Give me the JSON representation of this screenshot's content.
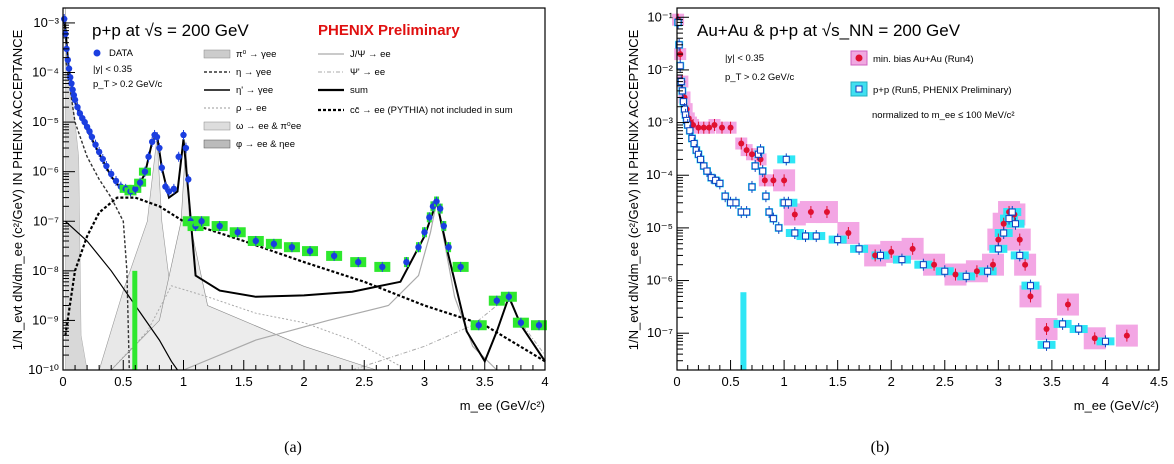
{
  "captions": [
    "(a)",
    "(b)"
  ],
  "chart_data": [
    {
      "type": "scatter",
      "title": "p+p at √s = 200 GeV",
      "prelim": "PHENIX Preliminary",
      "xlabel": "m_ee (GeV/c²)",
      "ylabel": "1/N_evt dN/dm_ee (c²/GeV) IN PHENIX ACCEPTANCE",
      "log_y": true,
      "xlim": [
        0,
        4
      ],
      "ylim": [
        1e-10,
        0.002
      ],
      "x_ticks": [
        "0",
        "0.5",
        "1",
        "1.5",
        "2",
        "2.5",
        "3",
        "3.5",
        "4"
      ],
      "y_ticks": [
        "10⁻¹⁰",
        "10⁻⁹",
        "10⁻⁸",
        "10⁻⁷",
        "10⁻⁶",
        "10⁻⁵",
        "10⁻⁴",
        "10⁻³"
      ],
      "cuts": [
        "|y| < 0.35",
        "p_T > 0.2 GeV/c"
      ],
      "legend": [
        "DATA",
        "π⁰ → γee",
        "η → γee",
        "η' → γee",
        "ρ → ee",
        "ω → ee & π⁰ee",
        "φ → ee & ηee",
        "J/Ψ → ee",
        "Ψ' → ee",
        "sum",
        "cc̄ → ee (PYTHIA) not included in sum"
      ],
      "series": [
        {
          "name": "DATA",
          "x": [
            0.01,
            0.02,
            0.03,
            0.04,
            0.05,
            0.06,
            0.07,
            0.08,
            0.09,
            0.1,
            0.12,
            0.14,
            0.16,
            0.18,
            0.2,
            0.22,
            0.24,
            0.27,
            0.3,
            0.33,
            0.36,
            0.4,
            0.44,
            0.48,
            0.52,
            0.56,
            0.6,
            0.64,
            0.68,
            0.71,
            0.74,
            0.76,
            0.78,
            0.8,
            0.82,
            0.85,
            0.88,
            0.92,
            0.96,
            1.0,
            1.02,
            1.04,
            1.06,
            1.1,
            1.15,
            1.3,
            1.45,
            1.6,
            1.75,
            1.9,
            2.05,
            2.25,
            2.45,
            2.65,
            2.85,
            2.95,
            3.0,
            3.04,
            3.07,
            3.1,
            3.13,
            3.16,
            3.2,
            3.3,
            3.45,
            3.6,
            3.7,
            3.8,
            3.95
          ],
          "y": [
            0.0012,
            0.0006,
            0.0003,
            0.00018,
            0.00012,
            8e-05,
            6e-05,
            4.5e-05,
            3.5e-05,
            2.8e-05,
            2e-05,
            1.5e-05,
            1.2e-05,
            1e-05,
            8e-06,
            6.5e-06,
            5e-06,
            3.5e-06,
            2.5e-06,
            1.8e-06,
            1.3e-06,
            9e-07,
            6.5e-07,
            5e-07,
            4.5e-07,
            4e-07,
            4.5e-07,
            6e-07,
            1e-06,
            2e-06,
            4e-06,
            5.5e-06,
            5e-06,
            3e-06,
            1.2e-06,
            5e-07,
            4e-07,
            4.5e-07,
            2e-06,
            5.5e-06,
            3e-06,
            7e-07,
            1e-07,
            8e-08,
            1e-07,
            8e-08,
            6e-08,
            4e-08,
            3.5e-08,
            3e-08,
            2.5e-08,
            2e-08,
            1.5e-08,
            1.2e-08,
            1.5e-08,
            3e-08,
            6e-08,
            1.2e-07,
            2e-07,
            2.5e-07,
            1.8e-07,
            8e-08,
            3e-08,
            1.2e-08,
            8e-10,
            2.5e-09,
            3e-09,
            9e-10,
            8e-10
          ]
        },
        {
          "name": "sum",
          "x": [
            0.01,
            0.05,
            0.1,
            0.2,
            0.3,
            0.4,
            0.5,
            0.6,
            0.68,
            0.74,
            0.78,
            0.82,
            0.88,
            0.95,
            1.0,
            1.04,
            1.1,
            1.3,
            1.6,
            2.0,
            2.4,
            2.8,
            3.0,
            3.1,
            3.2,
            3.35,
            3.5,
            3.6,
            3.7,
            3.8,
            4.0
          ],
          "y": [
            0.0013,
            0.00011,
            2.5e-05,
            7e-06,
            2.3e-06,
            8e-07,
            4e-07,
            4e-07,
            9e-07,
            4e-06,
            5.5e-06,
            1.2e-06,
            3e-07,
            4e-07,
            4.5e-06,
            4e-07,
            8e-09,
            4e-09,
            3e-09,
            3.2e-09,
            3.8e-09,
            6e-09,
            5e-08,
            2.5e-07,
            2e-08,
            6e-10,
            1.5e-10,
            6e-10,
            3e-09,
            8e-10,
            1.5e-10
          ]
        },
        {
          "name": "cc̄ → ee (PYTHIA) not included in sum",
          "x": [
            0.02,
            0.1,
            0.2,
            0.3,
            0.45,
            0.6,
            0.8,
            1.0,
            1.5,
            2.0,
            2.5,
            3.0,
            3.5,
            4.0
          ],
          "y": [
            5e-10,
            1e-08,
            5e-08,
            1.5e-07,
            3e-07,
            3e-07,
            2e-07,
            1e-07,
            4e-08,
            1.5e-08,
            6e-09,
            2e-09,
            8e-10,
            1.5e-10
          ]
        }
      ]
    },
    {
      "type": "scatter",
      "title": "Au+Au & p+p at √s_NN = 200 GeV",
      "xlabel": "m_ee (GeV/c²)",
      "ylabel": "1/N_evt dN/dm_ee (c²/GeV) IN PHENIX ACCEPTANCE",
      "log_y": true,
      "xlim": [
        0,
        4.5
      ],
      "ylim": [
        2e-08,
        0.15
      ],
      "x_ticks": [
        "0",
        "0.5",
        "1",
        "1.5",
        "2",
        "2.5",
        "3",
        "3.5",
        "4",
        "4.5"
      ],
      "y_ticks": [
        "10⁻⁷",
        "10⁻⁶",
        "10⁻⁵",
        "10⁻⁴",
        "10⁻³",
        "10⁻²",
        "10⁻¹"
      ],
      "cuts": [
        "|y| < 0.35",
        "p_T > 0.2 GeV/c"
      ],
      "note": "normalized to m_ee ≤ 100 MeV/c²",
      "legend": [
        "min. bias Au+Au (Run4)",
        "p+p (Run5, PHENIX Preliminary)"
      ],
      "series": [
        {
          "name": "min. bias Au+Au (Run4)",
          "color": "#e01030",
          "x": [
            0.01,
            0.03,
            0.05,
            0.07,
            0.09,
            0.11,
            0.13,
            0.15,
            0.2,
            0.25,
            0.3,
            0.35,
            0.42,
            0.5,
            0.6,
            0.65,
            0.7,
            0.75,
            0.78,
            0.82,
            0.9,
            1.0,
            1.1,
            1.25,
            1.4,
            1.6,
            1.85,
            2.0,
            2.2,
            2.4,
            2.6,
            2.8,
            2.95,
            3.0,
            3.05,
            3.1,
            3.15,
            3.2,
            3.25,
            3.3,
            3.45,
            3.65,
            3.9,
            4.2
          ],
          "y": [
            0.09,
            0.02,
            0.006,
            0.003,
            0.0018,
            0.0012,
            0.001,
            0.0009,
            0.0008,
            0.0008,
            0.0008,
            0.0009,
            0.0008,
            0.0008,
            0.0004,
            0.0003,
            0.00025,
            0.00025,
            0.0002,
            8e-05,
            8e-05,
            8e-05,
            1.8e-05,
            2e-05,
            2e-05,
            8e-06,
            3e-06,
            3.5e-06,
            4e-06,
            2e-06,
            1.3e-06,
            1.5e-06,
            2e-06,
            6e-06,
            1.2e-05,
            2e-05,
            1.8e-05,
            6e-06,
            2e-06,
            5e-07,
            1.2e-07,
            3.5e-07,
            8e-08,
            9e-08
          ]
        },
        {
          "name": "p+p (Run5, PHENIX Preliminary)",
          "color": "#1040c0",
          "x": [
            0.01,
            0.02,
            0.03,
            0.04,
            0.05,
            0.06,
            0.07,
            0.08,
            0.09,
            0.1,
            0.12,
            0.14,
            0.16,
            0.18,
            0.2,
            0.22,
            0.25,
            0.28,
            0.32,
            0.36,
            0.4,
            0.45,
            0.5,
            0.55,
            0.6,
            0.65,
            0.7,
            0.73,
            0.76,
            0.78,
            0.8,
            0.83,
            0.86,
            0.9,
            0.95,
            1.0,
            1.02,
            1.04,
            1.1,
            1.2,
            1.3,
            1.5,
            1.7,
            1.9,
            2.1,
            2.3,
            2.5,
            2.7,
            2.9,
            3.0,
            3.05,
            3.1,
            3.13,
            3.16,
            3.2,
            3.3,
            3.45,
            3.6,
            3.75,
            4.0
          ],
          "y": [
            0.08,
            0.03,
            0.012,
            0.006,
            0.004,
            0.0025,
            0.0018,
            0.0014,
            0.0011,
            0.0009,
            0.0007,
            0.0005,
            0.0004,
            0.0003,
            0.00025,
            0.0002,
            0.00015,
            0.00012,
            9e-05,
            8e-05,
            7e-05,
            4e-05,
            3e-05,
            3e-05,
            2e-05,
            2e-05,
            6e-05,
            0.00015,
            0.00025,
            0.0003,
            0.00012,
            4e-05,
            2e-05,
            1.5e-05,
            1e-05,
            3e-05,
            0.0002,
            3e-05,
            8e-06,
            7e-06,
            7e-06,
            6e-06,
            4e-06,
            3e-06,
            2.5e-06,
            2e-06,
            1.5e-06,
            1.2e-06,
            1.5e-06,
            4e-06,
            8e-06,
            1.5e-05,
            2e-05,
            1.2e-05,
            3e-06,
            8e-07,
            6e-08,
            1.5e-07,
            1.2e-07,
            7e-08
          ]
        }
      ]
    }
  ]
}
